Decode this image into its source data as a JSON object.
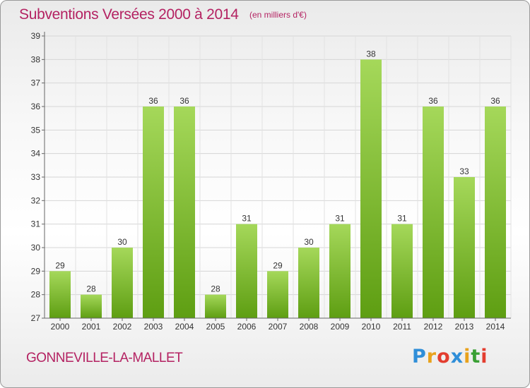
{
  "header": {
    "title": "Subventions Versées 2000 à 2014",
    "unit_note": "(en milliers d'€)"
  },
  "footer": {
    "commune": "GONNEVILLE-LA-MALLET",
    "logo_letters": [
      "P",
      "r",
      "o",
      "x",
      "i",
      "t",
      "i"
    ],
    "logo_colors": [
      "#2f8ed8",
      "#e8a21c",
      "#e33d2f",
      "#2f8ed8",
      "#e8a21c",
      "#3aa035",
      "#e33d2f"
    ]
  },
  "colors": {
    "bar_light": "#a5d85a",
    "bar_dark": "#5e9e12",
    "title": "#b42262"
  },
  "chart_data": {
    "type": "bar",
    "title": "Subventions Versées 2000 à 2014",
    "subtitle": "(en milliers d'€)",
    "xlabel": "",
    "ylabel": "",
    "categories": [
      "2000",
      "2001",
      "2002",
      "2003",
      "2004",
      "2005",
      "2006",
      "2007",
      "2008",
      "2009",
      "2010",
      "2011",
      "2012",
      "2013",
      "2014"
    ],
    "values": [
      29,
      28,
      30,
      36,
      36,
      28,
      31,
      29,
      30,
      31,
      38,
      31,
      36,
      33,
      36
    ],
    "ylim": [
      27,
      39
    ],
    "yticks": [
      27,
      28,
      29,
      30,
      31,
      32,
      33,
      34,
      35,
      36,
      37,
      38,
      39
    ],
    "grid": true,
    "legend": "none"
  }
}
